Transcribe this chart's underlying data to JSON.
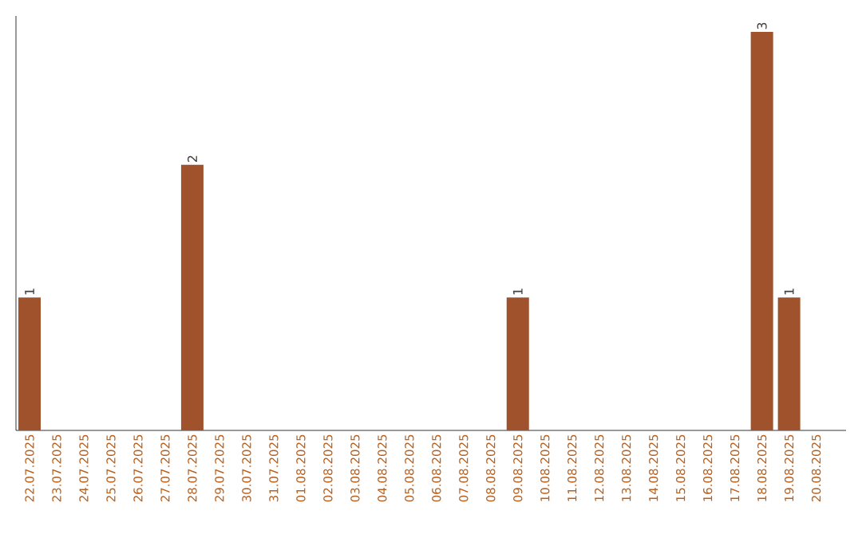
{
  "chart_data": {
    "type": "bar",
    "categories": [
      "22.07.2025",
      "23.07.2025",
      "24.07.2025",
      "25.07.2025",
      "26.07.2025",
      "27.07.2025",
      "28.07.2025",
      "29.07.2025",
      "30.07.2025",
      "31.07.2025",
      "01.08.2025",
      "02.08.2025",
      "03.08.2025",
      "04.08.2025",
      "05.08.2025",
      "06.08.2025",
      "07.08.2025",
      "08.08.2025",
      "09.08.2025",
      "10.08.2025",
      "11.08.2025",
      "12.08.2025",
      "13.08.2025",
      "14.08.2025",
      "15.08.2025",
      "16.08.2025",
      "17.08.2025",
      "18.08.2025",
      "19.08.2025",
      "20.08.2025"
    ],
    "values": [
      1,
      0,
      0,
      0,
      0,
      0,
      2,
      0,
      0,
      0,
      0,
      0,
      0,
      0,
      0,
      0,
      0,
      0,
      1,
      0,
      0,
      0,
      0,
      0,
      0,
      0,
      0,
      3,
      1,
      0
    ],
    "value_labels": [
      "1",
      null,
      null,
      null,
      null,
      null,
      "2",
      null,
      null,
      null,
      null,
      null,
      null,
      null,
      null,
      null,
      null,
      null,
      "1",
      null,
      null,
      null,
      null,
      null,
      null,
      null,
      null,
      "3",
      "1",
      null
    ],
    "color": "#a0522d",
    "tick_labels": "x"
  }
}
